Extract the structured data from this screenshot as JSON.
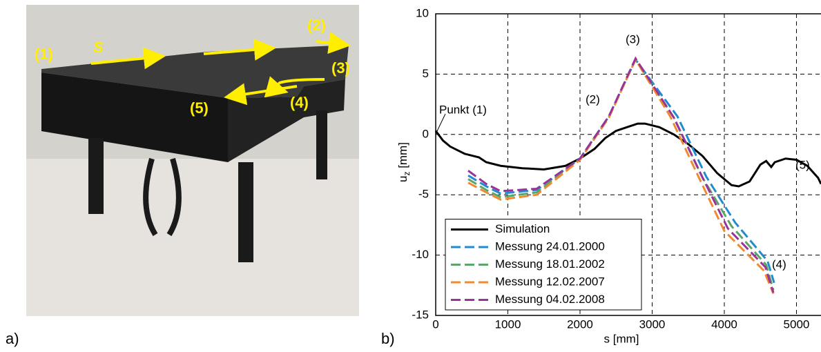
{
  "photo": {
    "labels": [
      "(1)",
      "S",
      "(2)",
      "(3)",
      "(4)",
      "(5)"
    ]
  },
  "panel_labels": [
    "a)",
    "b)"
  ],
  "chart_data": {
    "type": "line",
    "xlabel": "s [mm]",
    "ylabel": "u",
    "ylabel_sub": "z",
    "ylabel_unit": " [mm]",
    "annotations": [
      "Punkt (1)",
      "(2)",
      "(3)",
      "(4)",
      "(5)"
    ],
    "xlim": [
      0,
      5340
    ],
    "ylim": [
      -15,
      10
    ],
    "xticks": [
      0,
      1000,
      2000,
      3000,
      4000,
      5000
    ],
    "yticks": [
      -15,
      -10,
      -5,
      0,
      5,
      10
    ],
    "grid": true,
    "legend": "lower left",
    "series": [
      {
        "name": "Simulation",
        "color": "#000000",
        "style": "solid",
        "x": [
          0,
          100,
          200,
          400,
          600,
          700,
          900,
          1200,
          1500,
          1800,
          2000,
          2200,
          2350,
          2500,
          2650,
          2800,
          2900,
          3100,
          3300,
          3500,
          3700,
          3900,
          4100,
          4200,
          4350,
          4500,
          4580,
          4650,
          4700,
          4850,
          5000,
          5150,
          5300,
          5340
        ],
        "values": [
          0.3,
          -0.5,
          -1,
          -1.6,
          -1.9,
          -2.3,
          -2.6,
          -2.8,
          -2.9,
          -2.6,
          -2.0,
          -1.2,
          -0.3,
          0.3,
          0.6,
          0.9,
          0.9,
          0.6,
          0,
          -0.8,
          -1.8,
          -3.2,
          -4.2,
          -4.3,
          -3.9,
          -2.5,
          -2.2,
          -2.7,
          -2.3,
          -2.0,
          -2.1,
          -2.6,
          -3.6,
          -4.1
        ]
      },
      {
        "name": "Messung 24.01.2000",
        "color": "#1f8bd0",
        "style": "dashed",
        "x": [
          450,
          700,
          900,
          1400,
          2000,
          2400,
          2770,
          3350,
          3750,
          4150,
          4600,
          4690
        ],
        "values": [
          -3.4,
          -4.3,
          -4.9,
          -4.6,
          -2.0,
          1.5,
          6.2,
          1.5,
          -3.5,
          -7.3,
          -10.5,
          -12.3
        ]
      },
      {
        "name": "Messung 18.01.2002",
        "color": "#5ba56b",
        "style": "dashed",
        "x": [
          450,
          700,
          900,
          1400,
          2000,
          2400,
          2770,
          3300,
          3700,
          4100,
          4580,
          4680
        ],
        "values": [
          -3.7,
          -4.6,
          -5.2,
          -4.8,
          -2.0,
          1.5,
          6.2,
          1.4,
          -3.6,
          -7.6,
          -10.8,
          -12.9
        ]
      },
      {
        "name": "Messung 12.02.2007",
        "color": "#f0892f",
        "style": "dashed",
        "x": [
          450,
          700,
          900,
          1400,
          2000,
          2400,
          2770,
          3250,
          3650,
          4000,
          4550,
          4680
        ],
        "values": [
          -4.0,
          -4.8,
          -5.4,
          -5.0,
          -2.1,
          1.4,
          6.2,
          1.5,
          -3.6,
          -8.0,
          -11.3,
          -13.2
        ]
      },
      {
        "name": "Messung 04.02.2008",
        "color": "#993399",
        "style": "dashed",
        "x": [
          450,
          700,
          900,
          1400,
          2000,
          2400,
          2770,
          3300,
          3700,
          4050,
          4570,
          4680
        ],
        "values": [
          -3.0,
          -4.1,
          -4.7,
          -4.5,
          -2.0,
          1.5,
          6.3,
          1.4,
          -3.6,
          -7.8,
          -11.0,
          -13.1
        ]
      }
    ]
  }
}
